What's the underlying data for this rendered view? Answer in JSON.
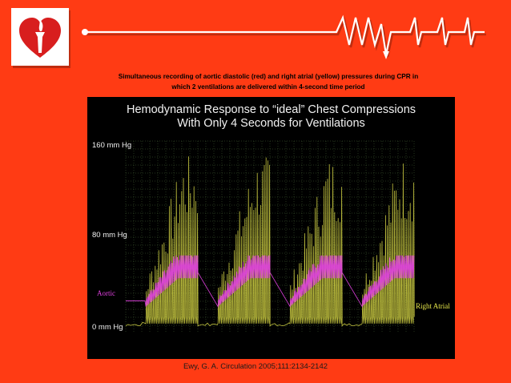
{
  "caption": {
    "line1": "Simultaneous recording of aortic diastolic (red) and right atrial (yellow) pressures during CPR in",
    "line2": "which 2 ventilations are delivered within 4-second time period"
  },
  "chart_data": {
    "type": "line",
    "title_line1": "Hemodynamic Response to “ideal” Chest Compressions",
    "title_line2": "With Only 4 Seconds for Ventilations",
    "y_ticks": [
      {
        "value": 160,
        "label": "160 mm Hg"
      },
      {
        "value": 80,
        "label": "80 mm Hg"
      },
      {
        "value": 0,
        "label": "0 mm Hg"
      }
    ],
    "ylim": [
      0,
      160
    ],
    "grid": true,
    "cycles": 4,
    "series": [
      {
        "name": "Aortic",
        "color": "#e040e0",
        "description_values": {
          "baseline": 20,
          "peak": 55
        }
      },
      {
        "name": "Right Atrial",
        "color": "#e6e64a",
        "description_values": {
          "baseline": 3,
          "peak": 150
        }
      }
    ]
  },
  "colors": {
    "background": "#ff3b14",
    "aortic": "#e040e0",
    "right_atrial": "#e6e64a",
    "grid": "#4a6a3a"
  },
  "citation": "Ewy, G. A. Circulation 2005;111:2134-2142",
  "logo": {
    "icon": "heart-torch-icon"
  }
}
